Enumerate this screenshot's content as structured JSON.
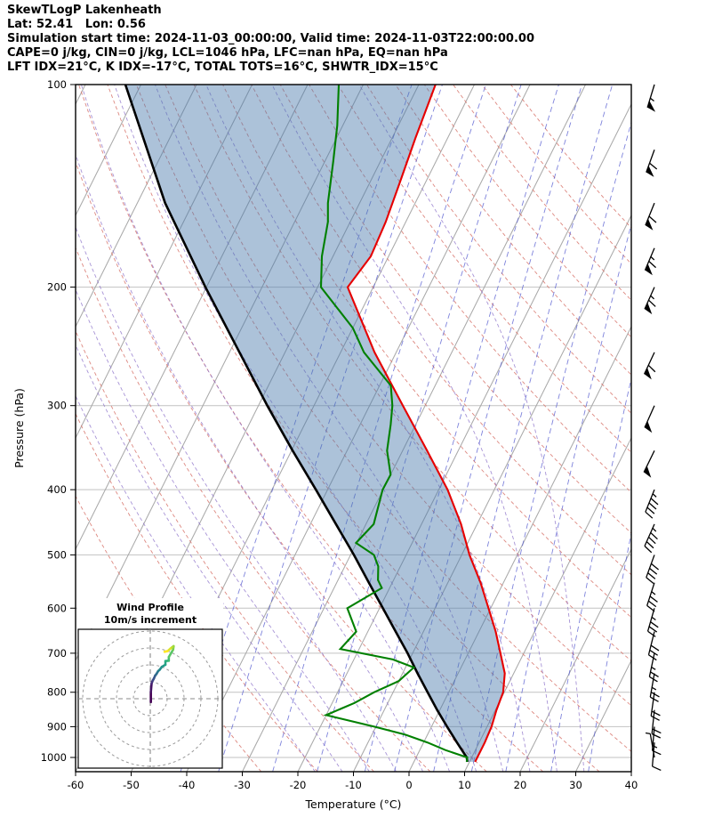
{
  "header": {
    "title": "SkewTLogP Lakenheath",
    "location": "Lat: 52.41   Lon: 0.56",
    "times": "Simulation start time: 2024-11-03_00:00:00, Valid time: 2024-11-03T22:00:00.00",
    "indices1": "CAPE=0 j/kg, CIN=0 j/kg, LCL=1046 hPa, LFC=nan hPa, EQ=nan hPa",
    "indices2": "LFT IDX=21°C, K IDX=-17°C, TOTAL TOTS=16°C, SHWTR_IDX=15°C"
  },
  "chart_data": {
    "type": "line",
    "variant": "skew-t-log-p",
    "title": "SkewTLogP Lakenheath",
    "xlabel": "Temperature (°C)",
    "ylabel": "Pressure (hPa)",
    "xlim": [
      -60,
      40
    ],
    "pressure_lim": [
      1050,
      100
    ],
    "x_ticks": [
      -60,
      -50,
      -40,
      -30,
      -20,
      -10,
      0,
      10,
      20,
      30,
      40
    ],
    "pressure_ticks": [
      100,
      200,
      300,
      400,
      500,
      600,
      700,
      800,
      900,
      1000
    ],
    "grid": {
      "isotherms_c": {
        "start": -120,
        "end": 40,
        "step": 10
      },
      "dry_adiabat_theta_c": {
        "start": -30,
        "end": 170,
        "step": 10
      },
      "moist_adiabat_thetaw_c": {
        "start": -20,
        "end": 30,
        "step": 5
      },
      "mixing_ratio_g_kg": [
        0.1,
        0.2,
        0.5,
        1,
        2,
        3,
        5,
        8,
        12,
        20,
        30
      ],
      "isotherm_color": "#a6a6a6",
      "pressure_grid_color": "#c2c2c2",
      "dry_adiabat_color": "#d97b72",
      "moist_adiabat_color": "#8a6fc8",
      "mixing_ratio_color": "#5158cf"
    },
    "series": [
      {
        "name": "temperature",
        "color": "#e60000",
        "points": [
          [
            1015,
            11
          ],
          [
            1000,
            11
          ],
          [
            950,
            11
          ],
          [
            900,
            10.8
          ],
          [
            850,
            10.2
          ],
          [
            800,
            9.8
          ],
          [
            750,
            8.4
          ],
          [
            700,
            5.8
          ],
          [
            650,
            3.0
          ],
          [
            600,
            -0.4
          ],
          [
            550,
            -4.1
          ],
          [
            500,
            -8.6
          ],
          [
            450,
            -12.9
          ],
          [
            400,
            -18.4
          ],
          [
            350,
            -25.6
          ],
          [
            300,
            -34.0
          ],
          [
            250,
            -43.9
          ],
          [
            200,
            -54.6
          ],
          [
            180,
            -53.2
          ],
          [
            160,
            -53.6
          ],
          [
            140,
            -54.6
          ],
          [
            120,
            -55.8
          ],
          [
            100,
            -57.0
          ]
        ]
      },
      {
        "name": "dewpoint",
        "color": "#008000",
        "points": [
          [
            1015,
            9.5
          ],
          [
            1000,
            9.2
          ],
          [
            975,
            4.6
          ],
          [
            950,
            0.7
          ],
          [
            925,
            -4.0
          ],
          [
            900,
            -10.3
          ],
          [
            865,
            -20.0
          ],
          [
            830,
            -16.0
          ],
          [
            800,
            -13.4
          ],
          [
            770,
            -10.0
          ],
          [
            735,
            -8.5
          ],
          [
            715,
            -13.0
          ],
          [
            690,
            -23.4
          ],
          [
            650,
            -22.1
          ],
          [
            600,
            -25.8
          ],
          [
            560,
            -21.4
          ],
          [
            545,
            -22.8
          ],
          [
            520,
            -24.0
          ],
          [
            500,
            -25.8
          ],
          [
            480,
            -30.1
          ],
          [
            450,
            -28.6
          ],
          [
            400,
            -30.1
          ],
          [
            380,
            -30.0
          ],
          [
            350,
            -32.8
          ],
          [
            320,
            -34.5
          ],
          [
            300,
            -35.9
          ],
          [
            280,
            -38.0
          ],
          [
            250,
            -45.8
          ],
          [
            230,
            -50.0
          ],
          [
            200,
            -59.4
          ],
          [
            180,
            -62.0
          ],
          [
            160,
            -64.0
          ],
          [
            150,
            -65.7
          ],
          [
            130,
            -68.5
          ],
          [
            115,
            -71.0
          ],
          [
            100,
            -74.4
          ]
        ]
      },
      {
        "name": "surface_parcel",
        "color": "#000000",
        "points": [
          [
            1015,
            9.6
          ],
          [
            1000,
            9.1
          ],
          [
            950,
            6.0
          ],
          [
            900,
            2.8
          ],
          [
            850,
            -0.5
          ],
          [
            800,
            -3.8
          ],
          [
            750,
            -7.3
          ],
          [
            700,
            -10.9
          ],
          [
            650,
            -15.0
          ],
          [
            600,
            -19.4
          ],
          [
            550,
            -24.2
          ],
          [
            500,
            -29.4
          ],
          [
            450,
            -35.4
          ],
          [
            400,
            -42.1
          ],
          [
            350,
            -49.8
          ],
          [
            300,
            -58.4
          ],
          [
            250,
            -68.2
          ],
          [
            200,
            -80.2
          ],
          [
            150,
            -95.0
          ],
          [
            100,
            -112.8
          ]
        ]
      }
    ],
    "shaded_area": {
      "between": [
        "surface_parcel",
        "temperature"
      ],
      "color": "#4678aa",
      "opacity": 0.45
    },
    "wind_barbs": {
      "speed_units": "m/s",
      "direction_units": "degrees_from",
      "levels": [
        [
          1000,
          350,
          2
        ],
        [
          950,
          185,
          4
        ],
        [
          900,
          185,
          9
        ],
        [
          850,
          186,
          10
        ],
        [
          800,
          188,
          11
        ],
        [
          750,
          190,
          12
        ],
        [
          700,
          192,
          14
        ],
        [
          650,
          194,
          15
        ],
        [
          600,
          196,
          17
        ],
        [
          550,
          198,
          18
        ],
        [
          500,
          200,
          20
        ],
        [
          450,
          204,
          22
        ],
        [
          400,
          202,
          24
        ],
        [
          350,
          206,
          25
        ],
        [
          300,
          204,
          27
        ],
        [
          250,
          205,
          32
        ],
        [
          200,
          204,
          34
        ],
        [
          175,
          203,
          33
        ],
        [
          150,
          202,
          32
        ],
        [
          125,
          200,
          30
        ],
        [
          100,
          197,
          29
        ]
      ]
    },
    "hodograph": {
      "title": "Wind Profile",
      "subtitle": "10m/s increment",
      "ring_interval_ms": 10,
      "rings_ms": [
        10,
        20,
        30,
        40
      ],
      "colormap": "viridis"
    }
  }
}
